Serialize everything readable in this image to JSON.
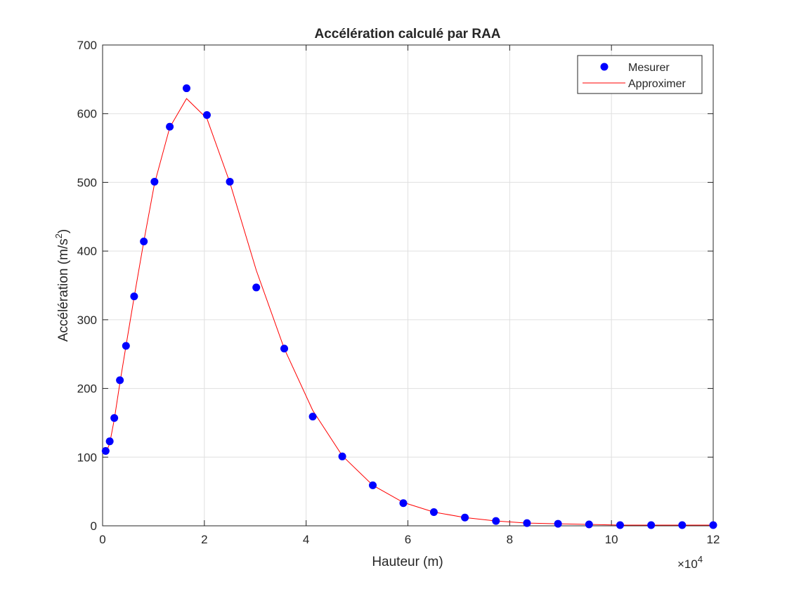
{
  "chart_data": {
    "type": "line",
    "title": "Accélération calculé par RAA",
    "xlabel": "Hauteur (m)",
    "ylabel": "Accélération (m/s",
    "ylabel_sup": "2",
    "ylabel_end": ")",
    "x_exponent_base": "×10",
    "x_exponent_power": "4",
    "xlim": [
      0,
      12
    ],
    "ylim": [
      0,
      700
    ],
    "xticks": [
      0,
      2,
      4,
      6,
      8,
      10,
      12
    ],
    "yticks": [
      0,
      100,
      200,
      300,
      400,
      500,
      600,
      700
    ],
    "xtick_labels": [
      "0",
      "2",
      "4",
      "6",
      "8",
      "10",
      "12"
    ],
    "ytick_labels": [
      "0",
      "100",
      "200",
      "300",
      "400",
      "500",
      "600",
      "700"
    ],
    "grid": true,
    "legend_position": "top-right",
    "colors": {
      "measured": "#0000ff",
      "approx": "#ff0000",
      "grid": "#e0e0e0",
      "axis": "#262626"
    },
    "series": [
      {
        "name": "Mesurer",
        "style": "markers",
        "x": [
          0.06,
          0.14,
          0.23,
          0.34,
          0.46,
          0.62,
          0.81,
          1.02,
          1.32,
          1.65,
          2.05,
          2.5,
          3.02,
          3.57,
          4.13,
          4.71,
          5.31,
          5.91,
          6.51,
          7.12,
          7.73,
          8.34,
          8.95,
          9.56,
          10.17,
          10.78,
          11.39,
          12.0
        ],
        "y": [
          109,
          123,
          157,
          212,
          262,
          334,
          414,
          501,
          581,
          637,
          598,
          501,
          347,
          258,
          159,
          101,
          59,
          33,
          20,
          12,
          7,
          4,
          3,
          2,
          1,
          1,
          1,
          1
        ]
      },
      {
        "name": "Approximer",
        "style": "line",
        "x": [
          0.06,
          0.14,
          0.23,
          0.34,
          0.46,
          0.62,
          0.81,
          1.02,
          1.32,
          1.65,
          2.05,
          2.5,
          3.02,
          3.57,
          4.13,
          4.71,
          5.31,
          5.91,
          6.51,
          7.12,
          7.73,
          8.34,
          8.95,
          9.56,
          10.17,
          10.78,
          11.39,
          12.0
        ],
        "y": [
          105,
          120,
          155,
          208,
          262,
          333,
          414,
          498,
          580,
          622,
          593,
          500,
          372,
          258,
          168,
          102,
          59,
          34,
          20,
          12,
          7,
          4,
          3,
          2,
          1,
          1,
          1,
          1
        ]
      }
    ]
  }
}
